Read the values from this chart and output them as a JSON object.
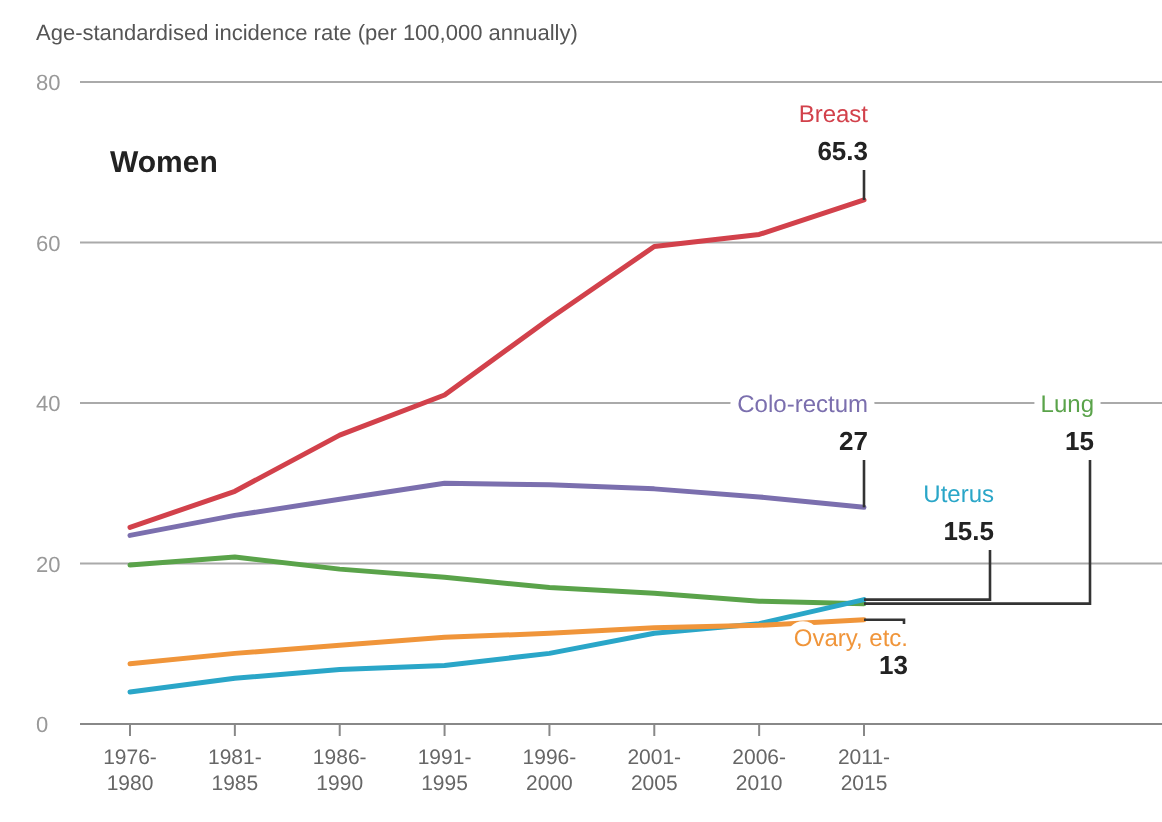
{
  "chart_data": {
    "type": "line",
    "title": "Women",
    "ylabel": "Age-standardised incidence rate (per 100,000  annually)",
    "categories": [
      "1976-1980",
      "1981-1985",
      "1986-1990",
      "1991-1995",
      "1996-2000",
      "2001-2005",
      "2006-2010",
      "2011-2015"
    ],
    "series": [
      {
        "name": "Breast",
        "color": "#d2414b",
        "values": [
          24.5,
          29,
          36,
          41,
          50.5,
          59.5,
          61,
          65.3
        ],
        "value_labels": [
          null,
          null,
          null,
          null,
          null,
          null,
          null,
          "65.3"
        ]
      },
      {
        "name": "Colo-rectum",
        "color": "#7b6fae",
        "values": [
          23.5,
          26,
          28,
          30,
          29.8,
          29.3,
          28.3,
          27
        ],
        "value_labels": [
          null,
          null,
          null,
          null,
          null,
          null,
          null,
          "27"
        ]
      },
      {
        "name": "Lung",
        "color": "#5aa34a",
        "values": [
          19.8,
          20.8,
          19.3,
          18.3,
          17,
          16.3,
          15.3,
          15
        ],
        "value_labels": [
          null,
          null,
          null,
          null,
          null,
          null,
          null,
          "15"
        ]
      },
      {
        "name": "Uterus",
        "color": "#2aa6c8",
        "values": [
          4,
          5.7,
          6.8,
          7.3,
          8.8,
          11.3,
          12.5,
          15.5
        ],
        "value_labels": [
          null,
          null,
          null,
          null,
          null,
          null,
          null,
          "15.5"
        ]
      },
      {
        "name": "Ovary, etc.",
        "color": "#f0953a",
        "values": [
          7.5,
          8.8,
          9.8,
          10.8,
          11.3,
          12,
          12.3,
          13
        ],
        "value_labels": [
          null,
          null,
          null,
          null,
          null,
          null,
          null,
          "13"
        ]
      }
    ],
    "ylim": [
      0,
      80
    ],
    "yticks": [
      0,
      20,
      40,
      60,
      80
    ],
    "grid": "y",
    "marker": "none",
    "line_style": "solid"
  }
}
